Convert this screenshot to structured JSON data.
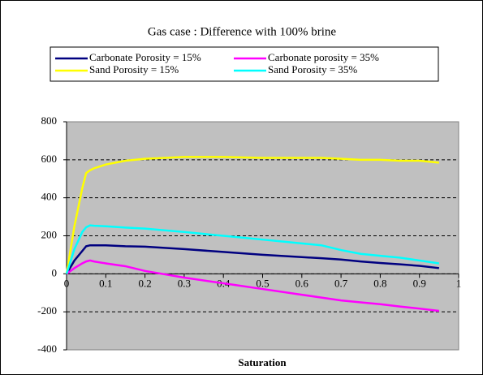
{
  "chart_data": {
    "type": "line",
    "title": "Gas case  : Difference with    100% brine",
    "x_label": "Saturation",
    "x": [
      0,
      0.02,
      0.04,
      0.05,
      0.06,
      0.07,
      0.1,
      0.15,
      0.2,
      0.3,
      0.4,
      0.5,
      0.6,
      0.65,
      0.7,
      0.75,
      0.8,
      0.85,
      0.9,
      0.95
    ],
    "series": [
      {
        "name": "Carbonate Porosity = 15%",
        "color": "#000080",
        "values": [
          0,
          70,
          120,
          145,
          150,
          150,
          150,
          145,
          143,
          130,
          115,
          100,
          88,
          82,
          75,
          65,
          57,
          50,
          42,
          30
        ]
      },
      {
        "name": "Carbonate  porosity = 35%",
        "color": "#ff00ff",
        "values": [
          0,
          30,
          55,
          65,
          70,
          65,
          55,
          40,
          15,
          -20,
          -50,
          -80,
          -110,
          -125,
          -140,
          -150,
          -160,
          -172,
          -183,
          -195
        ]
      },
      {
        "name": "Sand Porosity = 15%",
        "color": "#ffff00",
        "values": [
          0,
          250,
          450,
          530,
          545,
          555,
          575,
          595,
          605,
          615,
          615,
          610,
          610,
          610,
          605,
          600,
          600,
          595,
          595,
          585
        ]
      },
      {
        "name": "Sand Porosity = 35%",
        "color": "#00ffff",
        "values": [
          0,
          130,
          220,
          245,
          255,
          253,
          250,
          243,
          238,
          220,
          200,
          180,
          160,
          150,
          125,
          105,
          95,
          85,
          70,
          55
        ]
      }
    ],
    "xlim": [
      0,
      1
    ],
    "xticks": [
      0,
      0.1,
      0.2,
      0.3,
      0.4,
      0.5,
      0.6,
      0.7,
      0.8,
      0.9,
      1
    ],
    "ylim": [
      -400,
      800
    ],
    "yticks": [
      -400,
      -200,
      0,
      200,
      400,
      600,
      800
    ],
    "grid": true,
    "plot_background": "#c0c0c0"
  }
}
